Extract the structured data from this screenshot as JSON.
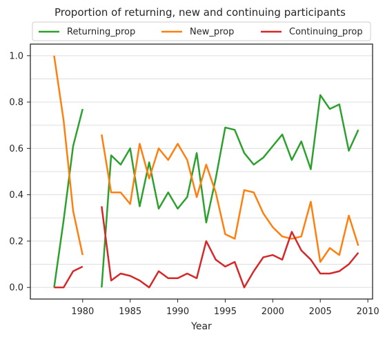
{
  "chart_data": {
    "type": "line",
    "title": "Proportion of returning, new and continuing participants",
    "xlabel": "Year",
    "ylabel": "",
    "xlim": [
      1974.5,
      2010.5
    ],
    "ylim": [
      -0.05,
      1.05
    ],
    "x_ticks": [
      1980,
      1985,
      1990,
      1995,
      2000,
      2005,
      2010
    ],
    "y_ticks": [
      0.0,
      0.2,
      0.4,
      0.6,
      0.8,
      1.0
    ],
    "y_tick_labels": [
      "0.0",
      "0.2",
      "0.4",
      "0.6",
      "0.8",
      "1.0"
    ],
    "grid": "horizontal",
    "legend_position": "top-center",
    "x": [
      1977,
      1978,
      1979,
      1980,
      1981,
      1982,
      1983,
      1984,
      1985,
      1986,
      1987,
      1988,
      1989,
      1990,
      1991,
      1992,
      1993,
      1994,
      1995,
      1996,
      1997,
      1998,
      1999,
      2000,
      2001,
      2002,
      2003,
      2004,
      2005,
      2006,
      2007,
      2008,
      2009
    ],
    "series": [
      {
        "name": "Returning_prop",
        "color": "#2ca02c",
        "values": [
          0.0,
          0.29,
          0.61,
          0.77,
          null,
          0.0,
          0.57,
          0.53,
          0.6,
          0.35,
          0.54,
          0.34,
          0.41,
          0.34,
          0.39,
          0.58,
          0.28,
          0.47,
          0.69,
          0.68,
          0.58,
          0.53,
          0.56,
          0.61,
          0.66,
          0.55,
          0.63,
          0.51,
          0.83,
          0.77,
          0.79,
          0.59,
          0.68
        ]
      },
      {
        "name": "New_prop",
        "color": "#ff7f0e",
        "values": [
          1.0,
          0.72,
          0.33,
          0.14,
          null,
          0.66,
          0.41,
          0.41,
          0.36,
          0.62,
          0.47,
          0.6,
          0.55,
          0.62,
          0.55,
          0.39,
          0.53,
          0.41,
          0.23,
          0.21,
          0.42,
          0.41,
          0.32,
          0.26,
          0.22,
          0.21,
          0.22,
          0.37,
          0.11,
          0.17,
          0.14,
          0.31,
          0.18
        ]
      },
      {
        "name": "Continuing_prop",
        "color": "#d62728",
        "values": [
          0.0,
          0.0,
          0.07,
          0.09,
          null,
          0.35,
          0.03,
          0.06,
          0.05,
          0.03,
          0.0,
          0.07,
          0.04,
          0.04,
          0.06,
          0.04,
          0.2,
          0.12,
          0.09,
          0.11,
          0.0,
          0.07,
          0.13,
          0.14,
          0.12,
          0.24,
          0.16,
          0.12,
          0.06,
          0.06,
          0.07,
          0.1,
          0.15
        ]
      }
    ]
  }
}
